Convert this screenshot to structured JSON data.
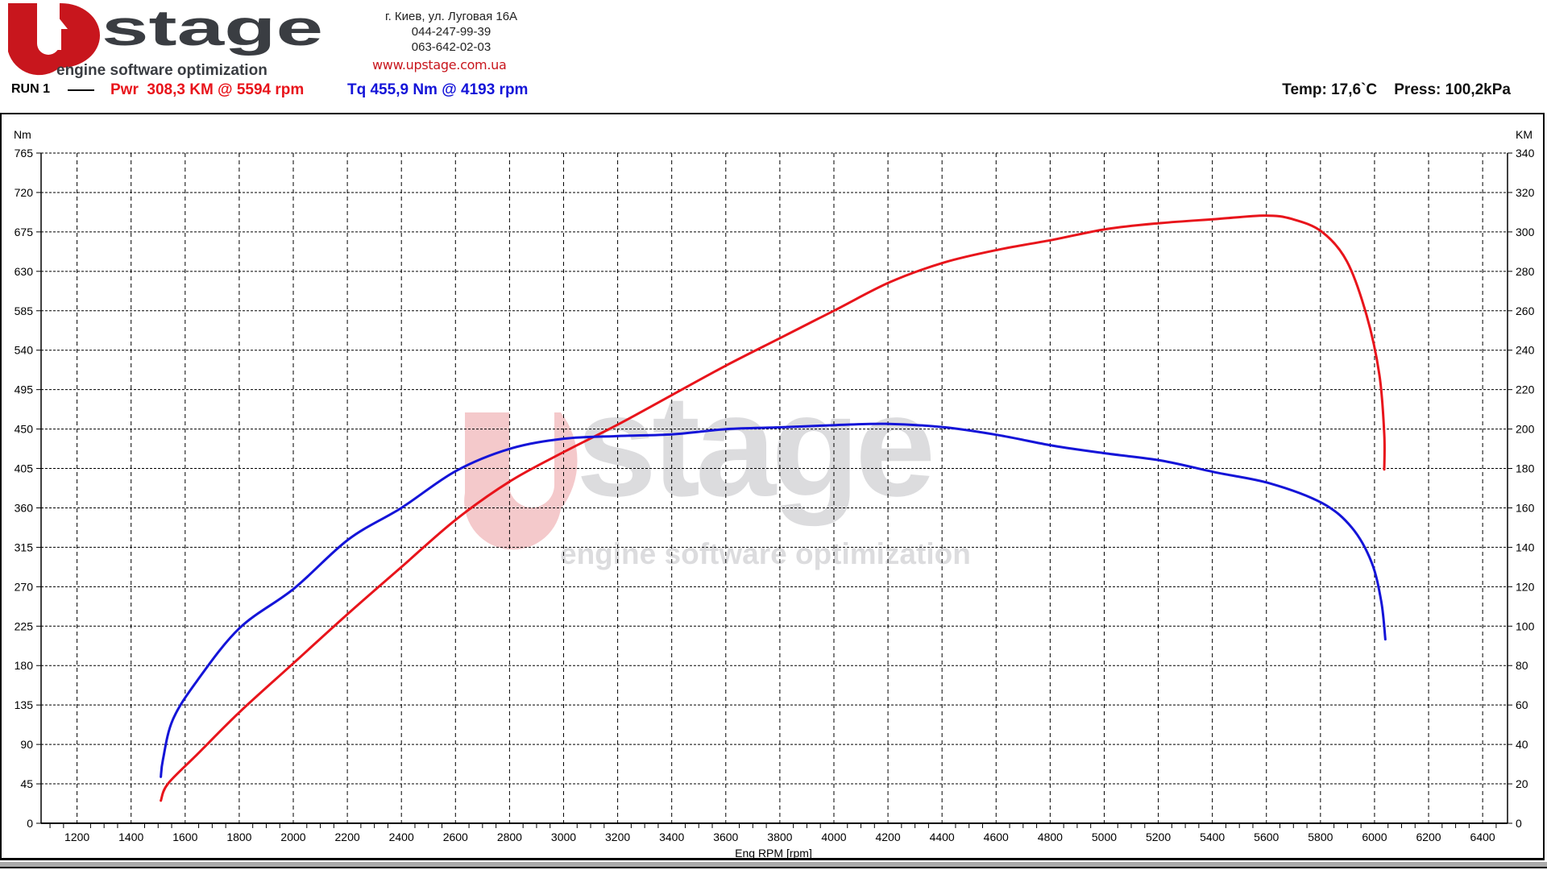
{
  "header": {
    "logo": {
      "brand": "Upstage",
      "word": "stage",
      "tagline": "engine software optimization"
    },
    "address": "г. Киев, ул. Луговая 16А",
    "phone1": "044-247-99-39",
    "phone2": "063-642-02-03",
    "website": "www.upstage.com.ua",
    "run_label": "RUN 1",
    "power_summary": "Pwr  308,3 KM @ 5594 rpm",
    "torque_summary": "Tq 455,9 Nm @ 4193 rpm",
    "conditions": "Temp: 17,6`C    Press: 100,2kPa"
  },
  "colors": {
    "power": "#e8141b",
    "torque": "#1414d8",
    "watermark_red": "#f4c9cb",
    "watermark_gray": "#dcdcde"
  },
  "chart_data": {
    "type": "line",
    "xlabel": "Eng RPM [rpm]",
    "ylabel_left": "Nm",
    "ylabel_right": "KM",
    "xlim": [
      1067,
      6492
    ],
    "ylim_left": [
      0,
      765
    ],
    "ylim_right": [
      0,
      340
    ],
    "grid": true,
    "x_ticks": [
      "1200",
      "1400",
      "1600",
      "1800",
      "2000",
      "2200",
      "2400",
      "2600",
      "2800",
      "3000",
      "3200",
      "3400",
      "3600",
      "3800",
      "4000",
      "4200",
      "4400",
      "4600",
      "4800",
      "5000",
      "5200",
      "5400",
      "5600",
      "5800",
      "6000",
      "6200",
      "6400"
    ],
    "y_left_ticks": [
      "0",
      "45",
      "90",
      "135",
      "180",
      "225",
      "270",
      "315",
      "360",
      "405",
      "450",
      "495",
      "540",
      "585",
      "630",
      "675",
      "720",
      "765"
    ],
    "y_right_ticks": [
      "0",
      "20",
      "40",
      "60",
      "80",
      "100",
      "120",
      "140",
      "160",
      "180",
      "200",
      "220",
      "240",
      "260",
      "280",
      "300",
      "320",
      "340"
    ],
    "series": [
      {
        "axis": "right",
        "color": "#e8141b",
        "x": [
          1510,
          1536,
          1645,
          1802,
          2003,
          2204,
          2400,
          2601,
          2802,
          3003,
          3204,
          3404,
          3605,
          3806,
          4007,
          4207,
          4408,
          4609,
          4810,
          5010,
          5211,
          5412,
          5594,
          5696,
          5806,
          5898,
          5971,
          6018,
          6036,
          6036
        ],
        "y": [
          11.5,
          20,
          35,
          56.5,
          81.5,
          106.5,
          130,
          154,
          173.5,
          188.5,
          202.5,
          217.5,
          232.5,
          246.5,
          260.5,
          274.5,
          284.5,
          291,
          296,
          301.5,
          304.5,
          306.5,
          308.3,
          306.5,
          300,
          285,
          257.5,
          227.5,
          197.5,
          179.5
        ]
      },
      {
        "axis": "left",
        "color": "#1414d8",
        "x": [
          1510,
          1518,
          1554,
          1645,
          1802,
          2003,
          2204,
          2400,
          2601,
          2802,
          3003,
          3204,
          3404,
          3605,
          3806,
          4007,
          4193,
          4408,
          4609,
          4810,
          5010,
          5211,
          5412,
          5613,
          5806,
          5916,
          5989,
          6025,
          6040
        ],
        "y": [
          53,
          73,
          118,
          163,
          223,
          268,
          324,
          360,
          402,
          427.5,
          439,
          442,
          444,
          450,
          452,
          454.5,
          455.9,
          452,
          443,
          431,
          422,
          414,
          400.5,
          388,
          365.5,
          337.5,
          298,
          253,
          210
        ]
      }
    ]
  }
}
